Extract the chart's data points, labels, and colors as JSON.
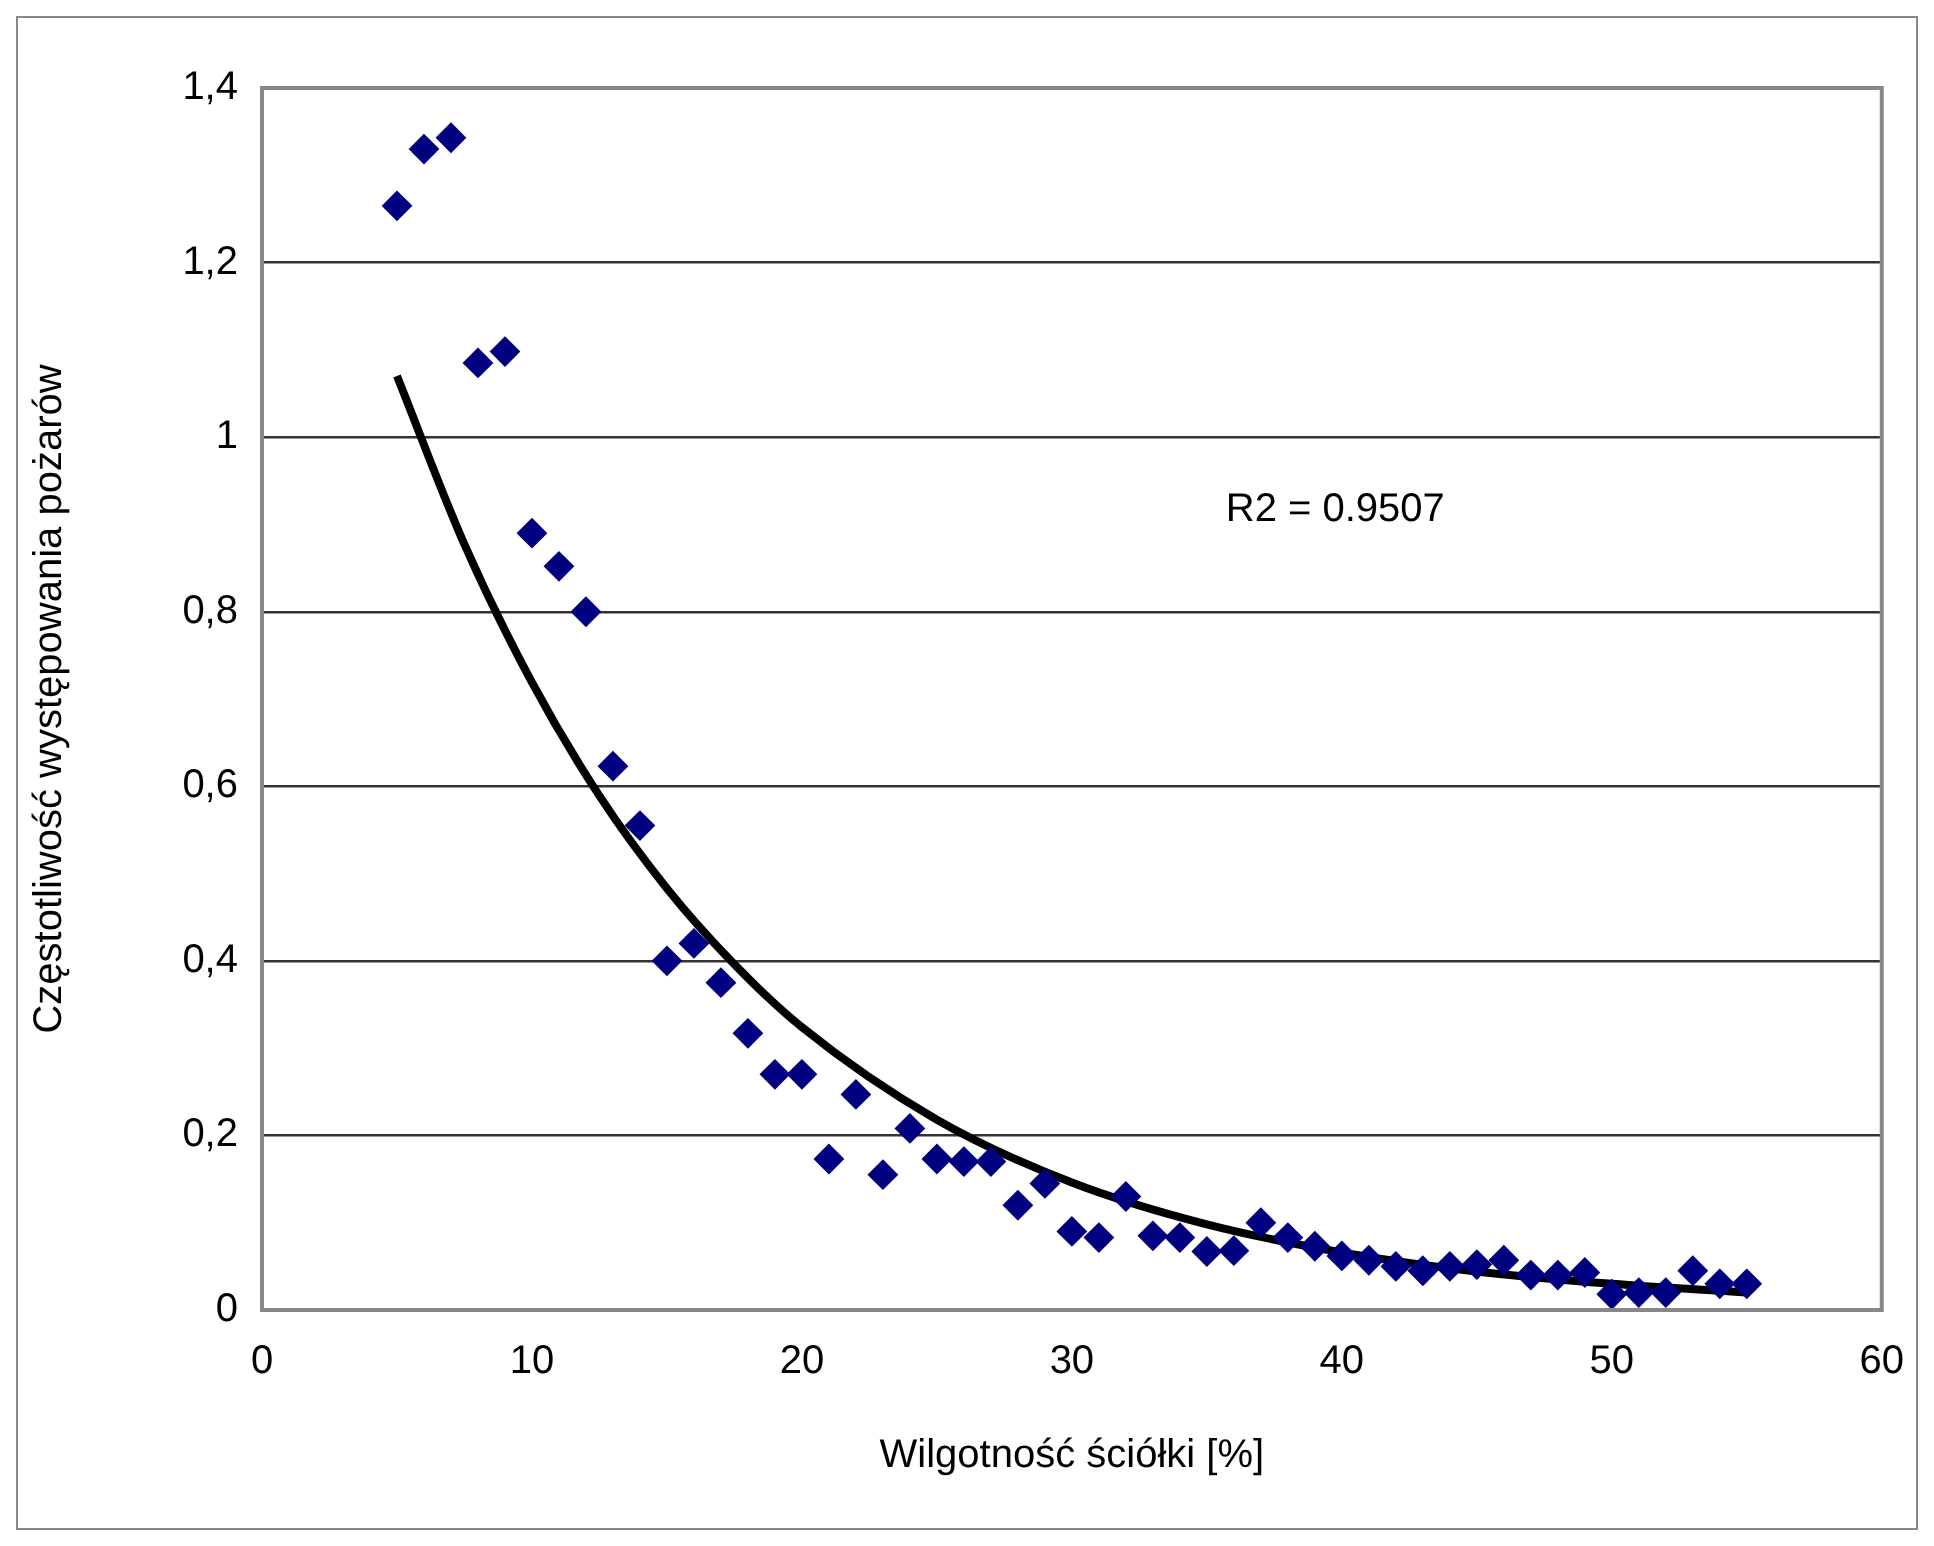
{
  "chart_data": {
    "type": "scatter",
    "xlabel": "Wilgotność ściółki [%]",
    "ylabel": "Częstotliwość występowania pożarów",
    "xlim": [
      0,
      60
    ],
    "xticks": [
      0,
      10,
      20,
      30,
      40,
      50,
      60
    ],
    "ylim": [
      0,
      1.4
    ],
    "yticks": [
      {
        "value": 0,
        "label": "0"
      },
      {
        "value": 0.2,
        "label": "0,2"
      },
      {
        "value": 0.4,
        "label": "0,4"
      },
      {
        "value": 0.6,
        "label": "0,6"
      },
      {
        "value": 0.8,
        "label": "0,8"
      },
      {
        "value": 1,
        "label": "1"
      },
      {
        "value": 1.2,
        "label": "1,2"
      },
      {
        "value": 1.4,
        "label": "1,4"
      }
    ],
    "grid": "y",
    "legend": false,
    "annotations": [
      "R2 = 0.9507"
    ],
    "series": [
      {
        "type": "scatter",
        "color": "#000080",
        "marker": "diamond",
        "x": [
          5,
          6,
          7,
          8,
          9,
          10,
          11,
          12,
          13,
          14,
          15,
          16,
          17,
          18,
          19,
          20,
          21,
          22,
          23,
          24,
          25,
          26,
          27,
          28,
          29,
          30,
          31,
          32,
          33,
          34,
          35,
          36,
          37,
          38,
          39,
          40,
          41,
          42,
          43,
          44,
          45,
          46,
          47,
          48,
          49,
          50,
          51,
          52,
          53,
          54,
          55
        ],
        "values": [
          1.265,
          1.33,
          1.343,
          1.085,
          1.098,
          0.89,
          0.852,
          0.8,
          0.623,
          0.555,
          0.4,
          0.42,
          0.375,
          0.317,
          0.27,
          0.27,
          0.173,
          0.247,
          0.155,
          0.208,
          0.173,
          0.17,
          0.17,
          0.12,
          0.145,
          0.09,
          0.083,
          0.13,
          0.085,
          0.083,
          0.067,
          0.068,
          0.1,
          0.083,
          0.073,
          0.062,
          0.057,
          0.05,
          0.045,
          0.05,
          0.052,
          0.057,
          0.04,
          0.04,
          0.043,
          0.018,
          0.02,
          0.02,
          0.045,
          0.03,
          0.03
        ]
      },
      {
        "type": "line",
        "color": "#000000",
        "marker": "none",
        "x": [
          5,
          7.5,
          10,
          12.5,
          15,
          17.5,
          20,
          25,
          30,
          35,
          40,
          45,
          50,
          55
        ],
        "values": [
          1.07,
          0.877,
          0.719,
          0.589,
          0.483,
          0.396,
          0.324,
          0.218,
          0.146,
          0.098,
          0.066,
          0.044,
          0.03,
          0.02
        ]
      }
    ]
  }
}
